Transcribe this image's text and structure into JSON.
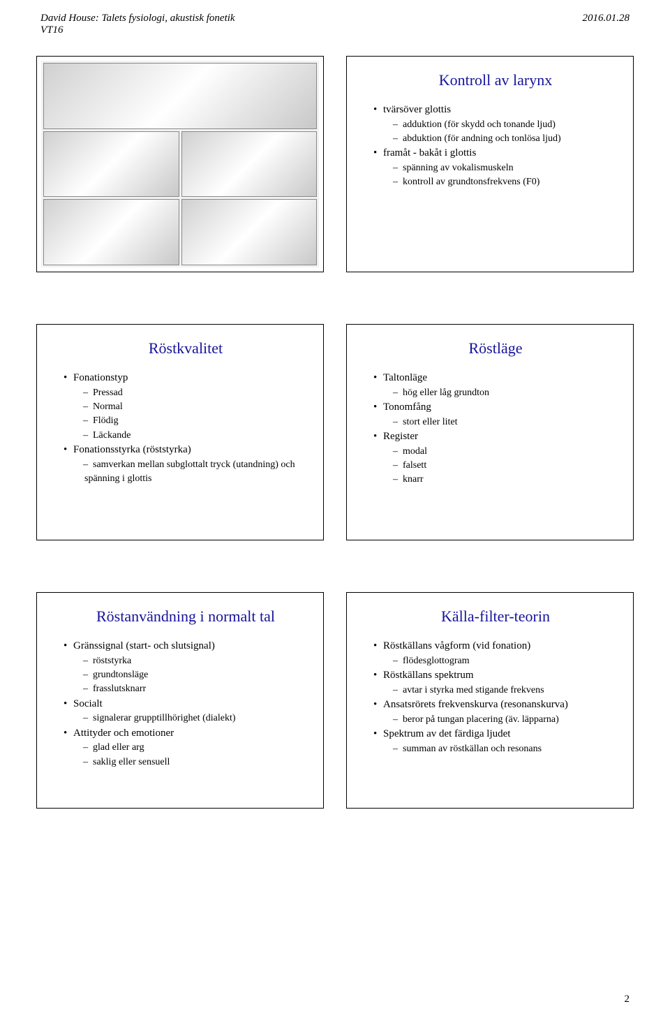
{
  "header": {
    "left_line1": "David House: Talets fysiologi, akustisk fonetik",
    "left_line2": "VT16",
    "right": "2016.01.28"
  },
  "slides": {
    "s1": {
      "image_placeholder": true
    },
    "s2": {
      "title": "Kontroll av larynx",
      "items": [
        {
          "lvl": "bullet",
          "text": "tvärsöver glottis"
        },
        {
          "lvl": "dash",
          "text": "adduktion (för skydd och tonande ljud)"
        },
        {
          "lvl": "dash",
          "text": "abduktion (för andning och tonlösa ljud)"
        },
        {
          "lvl": "bullet",
          "text": "framåt - bakåt i glottis"
        },
        {
          "lvl": "dash",
          "text": "spänning av vokalismuskeln"
        },
        {
          "lvl": "dash",
          "text": "kontroll av grundtonsfrekvens (F0)"
        }
      ]
    },
    "s3": {
      "title": "Röstkvalitet",
      "items": [
        {
          "lvl": "bullet",
          "text": "Fonationstyp"
        },
        {
          "lvl": "dash",
          "text": "Pressad"
        },
        {
          "lvl": "dash",
          "text": "Normal"
        },
        {
          "lvl": "dash",
          "text": "Flödig"
        },
        {
          "lvl": "dash",
          "text": "Läckande"
        },
        {
          "lvl": "bullet",
          "text": "Fonationsstyrka (röststyrka)"
        },
        {
          "lvl": "dash",
          "text": "samverkan mellan subglottalt tryck (utandning) och spänning i glottis"
        }
      ]
    },
    "s4": {
      "title": "Röstläge",
      "items": [
        {
          "lvl": "bullet",
          "text": "Taltonläge"
        },
        {
          "lvl": "dash",
          "text": "hög eller låg grundton"
        },
        {
          "lvl": "bullet",
          "text": "Tonomfång"
        },
        {
          "lvl": "dash",
          "text": "stort eller litet"
        },
        {
          "lvl": "bullet",
          "text": "Register"
        },
        {
          "lvl": "dash",
          "text": "modal"
        },
        {
          "lvl": "dash",
          "text": "falsett"
        },
        {
          "lvl": "dash",
          "text": "knarr"
        }
      ]
    },
    "s5": {
      "title": "Röstanvändning i normalt tal",
      "items": [
        {
          "lvl": "bullet",
          "text": "Gränssignal (start- och slutsignal)"
        },
        {
          "lvl": "dash",
          "text": "röststyrka"
        },
        {
          "lvl": "dash",
          "text": "grundtonsläge"
        },
        {
          "lvl": "dash",
          "text": "frasslutsknarr"
        },
        {
          "lvl": "bullet",
          "text": "Socialt"
        },
        {
          "lvl": "dash",
          "text": "signalerar grupptillhörighet (dialekt)"
        },
        {
          "lvl": "bullet",
          "text": "Attityder och emotioner"
        },
        {
          "lvl": "dash",
          "text": "glad eller arg"
        },
        {
          "lvl": "dash",
          "text": "saklig eller sensuell"
        }
      ]
    },
    "s6": {
      "title": "Källa-filter-teorin",
      "items": [
        {
          "lvl": "bullet",
          "text": "Röstkällans vågform (vid fonation)"
        },
        {
          "lvl": "dash",
          "text": "flödesglottogram"
        },
        {
          "lvl": "bullet",
          "text": "Röstkällans spektrum"
        },
        {
          "lvl": "dash",
          "text": "avtar i styrka med stigande frekvens"
        },
        {
          "lvl": "bullet",
          "text": "Ansatsrörets frekvenskurva (resonanskurva)"
        },
        {
          "lvl": "dash",
          "text": "beror på tungan placering (äv. läpparna)"
        },
        {
          "lvl": "bullet",
          "text": "Spektrum av det färdiga ljudet"
        },
        {
          "lvl": "dash",
          "text": "summan av röstkällan och resonans"
        }
      ]
    }
  },
  "page_number": "2",
  "colors": {
    "title_color": "#16139b",
    "text_color": "#000000",
    "border_color": "#000000",
    "background": "#ffffff"
  }
}
